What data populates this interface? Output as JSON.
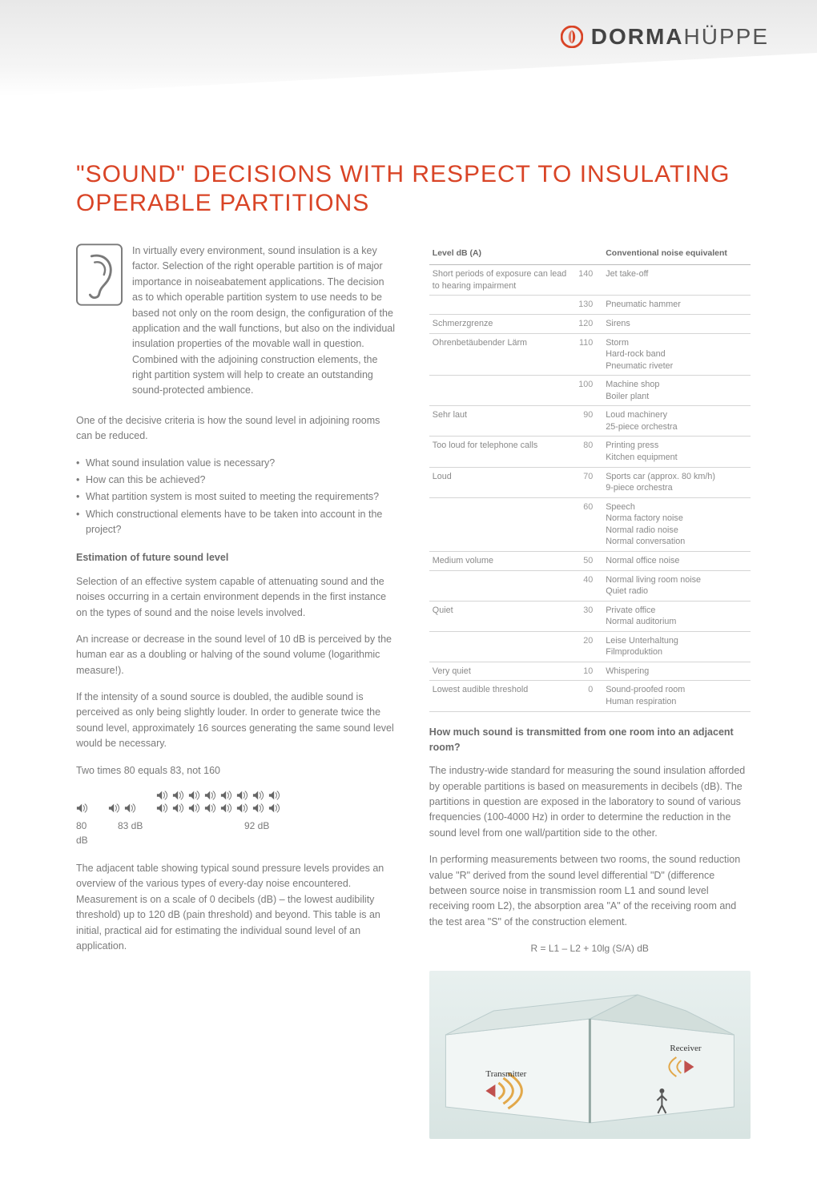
{
  "logo": {
    "brand_bold": "DORMA",
    "brand_light": "HÜPPE",
    "accent_color": "#d94426"
  },
  "title": "\"SOUND\" DECISIONS WITH RESPECT TO INSULATING OPERABLE PARTITIONS",
  "left": {
    "intro": "In virtually every environment, sound insulation is a key factor. Selection of the right operable partition is of major importance in noiseabatement applications. The decision as to which operable partition system to use needs to be based not only on the room design, the configuration of the application and the wall functions, but also on the individual insulation properties of the movable wall in question. Combined with the adjoining construction elements, the right partition system will help to create an outstanding sound-protected ambience.",
    "p2": "One of the decisive criteria is how the sound level in adjoining rooms can be reduced.",
    "bullets": [
      "What sound insulation value is necessary?",
      "How can this be achieved?",
      "What partition system is most suited to meeting the requirements?",
      "Which constructional elements have to be taken into account in the project?"
    ],
    "sub1": "Estimation of future sound level",
    "p3": "Selection of an effective system capable of attenuating sound and the noises occurring in a certain environment depends in the first instance on the types of sound and the noise levels involved.",
    "p4": "An increase or decrease in the sound level of 10 dB is perceived by the human ear as a doubling or halving of the sound volume (logarithmic measure!).",
    "p5": "If the intensity of a sound source is doubled, the audible sound is perceived as only being slightly louder. In order to generate twice the sound level, approximately 16 sources generating the same sound level would be necessary.",
    "p6": "Two times 80 equals 83, not 160",
    "db_labels": {
      "a": "80 dB",
      "b": "83 dB",
      "c": "92 dB"
    },
    "p7": "The adjacent table showing typical sound pressure levels provides an overview of the various types of every-day noise encountered. Measurement is on a scale of 0 decibels (dB) – the lowest audibility threshold) up to 120 dB (pain threshold) and beyond. This table is an initial, practical aid for estimating the individual sound level of an application."
  },
  "table": {
    "head_level": "Level dB (A)",
    "head_equiv": "Conventional noise equivalent",
    "rows": [
      {
        "desc": "Short periods of exposure can lead to hearing impairment",
        "db": "140",
        "equiv": "Jet take-off"
      },
      {
        "desc": "",
        "db": "130",
        "equiv": "Pneumatic hammer"
      },
      {
        "desc": "Schmerzgrenze",
        "db": "120",
        "equiv": "Sirens"
      },
      {
        "desc": "Ohrenbetäubender Lärm",
        "db": "110",
        "equiv": "Storm\nHard-rock band\nPneumatic riveter"
      },
      {
        "desc": "",
        "db": "100",
        "equiv": "Machine shop\nBoiler plant"
      },
      {
        "desc": "Sehr laut",
        "db": "90",
        "equiv": "Loud machinery\n25-piece orchestra"
      },
      {
        "desc": "Too loud for telephone calls",
        "db": "80",
        "equiv": "Printing press\nKitchen equipment"
      },
      {
        "desc": "Loud",
        "db": "70",
        "equiv": "Sports car (approx. 80 km/h)\n9-piece orchestra"
      },
      {
        "desc": "",
        "db": "60",
        "equiv": "Speech\nNorma factory noise\nNormal radio noise\nNormal conversation"
      },
      {
        "desc": "Medium volume",
        "db": "50",
        "equiv": "Normal office noise"
      },
      {
        "desc": "",
        "db": "40",
        "equiv": "Normal living room noise\nQuiet radio"
      },
      {
        "desc": "Quiet",
        "db": "30",
        "equiv": "Private office\nNormal auditorium"
      },
      {
        "desc": "",
        "db": "20",
        "equiv": "Leise Unterhaltung\nFilmproduktion"
      },
      {
        "desc": "Very quiet",
        "db": "10",
        "equiv": "Whispering"
      },
      {
        "desc": "Lowest audible threshold",
        "db": "0",
        "equiv": "Sound-proofed room\nHuman respiration"
      }
    ]
  },
  "right": {
    "sub2": "How much sound is transmitted from one room into an adjacent room?",
    "p8": "The industry-wide standard for measuring the sound insulation afforded by operable partitions is based on measurements in decibels (dB). The partitions in question are exposed in the laboratory to sound of various frequencies (100-4000 Hz) in order to determine the reduction in the sound level from one wall/partition side to the other.",
    "p9": "In performing measurements between two rooms, the sound reduction value \"R\" derived from the sound level differential \"D\" (difference between source noise in transmission room L1 and sound level receiving room L2), the absorption area \"A\" of the receiving room and the test area \"S\" of the construction element.",
    "formula": "R = L1 – L2 + 10lg (S/A) dB",
    "diagram_labels": {
      "tx": "Transmitter",
      "rx": "Receiver"
    }
  },
  "colors": {
    "heading": "#d94426",
    "body_text": "#7a7a7a",
    "table_border": "#d5d5d5"
  }
}
